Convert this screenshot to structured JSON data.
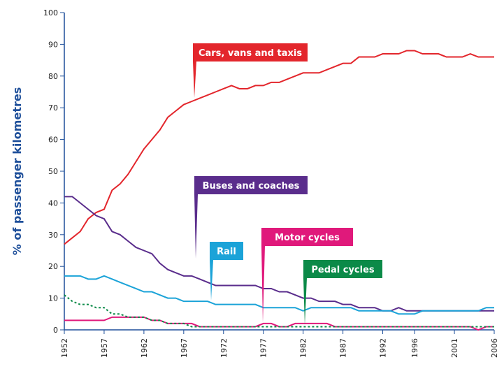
{
  "chart_data": {
    "type": "line",
    "y_label": "% of passenger kilometres",
    "x": [
      1952,
      1953,
      1954,
      1955,
      1956,
      1957,
      1958,
      1959,
      1960,
      1961,
      1962,
      1963,
      1964,
      1965,
      1966,
      1967,
      1968,
      1969,
      1970,
      1971,
      1972,
      1973,
      1974,
      1975,
      1976,
      1977,
      1978,
      1979,
      1980,
      1981,
      1982,
      1983,
      1984,
      1985,
      1986,
      1987,
      1988,
      1989,
      1990,
      1991,
      1992,
      1993,
      1994,
      1995,
      1996,
      1997,
      1998,
      1999,
      2000,
      2001,
      2002,
      2003,
      2004,
      2005,
      2006
    ],
    "xlim": [
      1952,
      2006
    ],
    "xticks": [
      1952,
      1957,
      1962,
      1967,
      1972,
      1977,
      1982,
      1987,
      1992,
      1996,
      2001,
      2006
    ],
    "ylim": [
      0,
      100
    ],
    "yticks": [
      0,
      10,
      20,
      30,
      40,
      50,
      60,
      70,
      80,
      90,
      100
    ],
    "series": [
      {
        "name": "Cars, vans and taxis",
        "color": "#e3262c",
        "values": [
          27,
          29,
          31,
          35,
          37,
          38,
          44,
          46,
          49,
          53,
          57,
          60,
          63,
          67,
          69,
          71,
          72,
          73,
          74,
          75,
          76,
          77,
          76,
          76,
          77,
          77,
          78,
          78,
          79,
          80,
          81,
          81,
          81,
          82,
          83,
          84,
          84,
          86,
          86,
          86,
          87,
          87,
          87,
          88,
          88,
          87,
          87,
          87,
          86,
          86,
          86,
          87,
          86,
          86,
          86
        ]
      },
      {
        "name": "Buses and coaches",
        "color": "#5a2d8c",
        "values": [
          42,
          42,
          40,
          38,
          36,
          35,
          31,
          30,
          28,
          26,
          25,
          24,
          21,
          19,
          18,
          17,
          17,
          16,
          15,
          14,
          14,
          14,
          14,
          14,
          14,
          13,
          13,
          12,
          12,
          11,
          10,
          10,
          9,
          9,
          9,
          8,
          8,
          7,
          7,
          7,
          6,
          6,
          7,
          6,
          6,
          6,
          6,
          6,
          6,
          6,
          6,
          6,
          6,
          6,
          6
        ]
      },
      {
        "name": "Rail",
        "color": "#1ba3d8",
        "values": [
          17,
          17,
          17,
          16,
          16,
          17,
          16,
          15,
          14,
          13,
          12,
          12,
          11,
          10,
          10,
          9,
          9,
          9,
          9,
          8,
          8,
          8,
          8,
          8,
          8,
          7,
          7,
          7,
          7,
          7,
          6,
          7,
          7,
          7,
          7,
          7,
          7,
          6,
          6,
          6,
          6,
          6,
          5,
          5,
          5,
          6,
          6,
          6,
          6,
          6,
          6,
          6,
          6,
          7,
          7
        ]
      },
      {
        "name": "Motor cycles",
        "color": "#e0197b",
        "values": [
          3,
          3,
          3,
          3,
          3,
          3,
          4,
          4,
          4,
          4,
          4,
          3,
          3,
          2,
          2,
          2,
          2,
          1,
          1,
          1,
          1,
          1,
          1,
          1,
          1,
          2,
          2,
          1,
          1,
          2,
          2,
          2,
          2,
          2,
          1,
          1,
          1,
          1,
          1,
          1,
          1,
          1,
          1,
          1,
          1,
          1,
          1,
          1,
          1,
          1,
          1,
          1,
          0,
          1,
          1
        ]
      },
      {
        "name": "Pedal cycles",
        "color": "#0b8a48",
        "dashed": true,
        "values": [
          11,
          9,
          8,
          8,
          7,
          7,
          5,
          5,
          4,
          4,
          4,
          3,
          3,
          2,
          2,
          2,
          1,
          1,
          1,
          1,
          1,
          1,
          1,
          1,
          1,
          1,
          1,
          1,
          1,
          1,
          1,
          1,
          1,
          1,
          1,
          1,
          1,
          1,
          1,
          1,
          1,
          1,
          1,
          1,
          1,
          1,
          1,
          1,
          1,
          1,
          1,
          1,
          1,
          1,
          1
        ]
      }
    ]
  }
}
